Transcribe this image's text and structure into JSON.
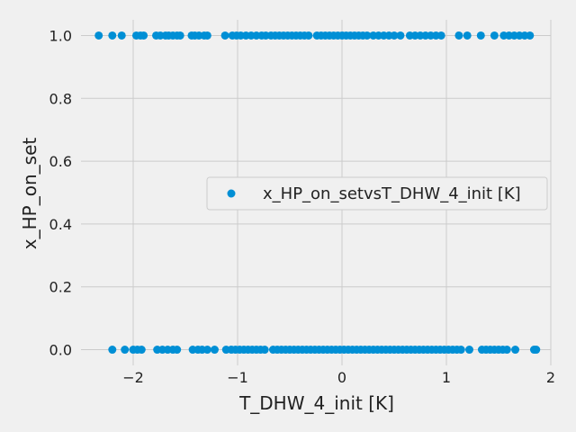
{
  "chart_data": {
    "type": "scatter",
    "title": "",
    "xlabel": "T_DHW_4_init [K]",
    "ylabel": "x_HP_on_set",
    "xlim": [
      -2.5,
      2.0
    ],
    "ylim": [
      -0.05,
      1.05
    ],
    "xticks": [
      -2,
      -1,
      0,
      1,
      2
    ],
    "xtick_labels": [
      "−2",
      "−1",
      "0",
      "1",
      "2"
    ],
    "yticks": [
      0.0,
      0.2,
      0.4,
      0.6,
      0.8,
      1.0
    ],
    "ytick_labels": [
      "0.0",
      "0.2",
      "0.4",
      "0.6",
      "0.8",
      "1.0"
    ],
    "grid": true,
    "legend_position": "center-right",
    "series": [
      {
        "name": "x_HP_on_setvsT_DHW_4_init [K]",
        "color": "#008fd5",
        "points": [
          {
            "x": -2.33,
            "y": 1
          },
          {
            "x": -2.2,
            "y": 1
          },
          {
            "x": -2.11,
            "y": 1
          },
          {
            "x": -1.97,
            "y": 1
          },
          {
            "x": -1.93,
            "y": 1
          },
          {
            "x": -1.9,
            "y": 1
          },
          {
            "x": -1.78,
            "y": 1
          },
          {
            "x": -1.74,
            "y": 1
          },
          {
            "x": -1.69,
            "y": 1
          },
          {
            "x": -1.66,
            "y": 1
          },
          {
            "x": -1.62,
            "y": 1
          },
          {
            "x": -1.58,
            "y": 1
          },
          {
            "x": -1.55,
            "y": 1
          },
          {
            "x": -1.44,
            "y": 1
          },
          {
            "x": -1.41,
            "y": 1
          },
          {
            "x": -1.37,
            "y": 1
          },
          {
            "x": -1.32,
            "y": 1
          },
          {
            "x": -1.29,
            "y": 1
          },
          {
            "x": -1.12,
            "y": 1
          },
          {
            "x": -1.05,
            "y": 1
          },
          {
            "x": -1.01,
            "y": 1
          },
          {
            "x": -0.97,
            "y": 1
          },
          {
            "x": -0.92,
            "y": 1
          },
          {
            "x": -0.87,
            "y": 1
          },
          {
            "x": -0.82,
            "y": 1
          },
          {
            "x": -0.77,
            "y": 1
          },
          {
            "x": -0.73,
            "y": 1
          },
          {
            "x": -0.68,
            "y": 1
          },
          {
            "x": -0.64,
            "y": 1
          },
          {
            "x": -0.6,
            "y": 1
          },
          {
            "x": -0.56,
            "y": 1
          },
          {
            "x": -0.52,
            "y": 1
          },
          {
            "x": -0.48,
            "y": 1
          },
          {
            "x": -0.44,
            "y": 1
          },
          {
            "x": -0.4,
            "y": 1
          },
          {
            "x": -0.36,
            "y": 1
          },
          {
            "x": -0.32,
            "y": 1
          },
          {
            "x": -0.24,
            "y": 1
          },
          {
            "x": -0.2,
            "y": 1
          },
          {
            "x": -0.16,
            "y": 1
          },
          {
            "x": -0.12,
            "y": 1
          },
          {
            "x": -0.08,
            "y": 1
          },
          {
            "x": -0.04,
            "y": 1
          },
          {
            "x": 0.0,
            "y": 1
          },
          {
            "x": 0.04,
            "y": 1
          },
          {
            "x": 0.08,
            "y": 1
          },
          {
            "x": 0.12,
            "y": 1
          },
          {
            "x": 0.16,
            "y": 1
          },
          {
            "x": 0.2,
            "y": 1
          },
          {
            "x": 0.24,
            "y": 1
          },
          {
            "x": 0.3,
            "y": 1
          },
          {
            "x": 0.35,
            "y": 1
          },
          {
            "x": 0.4,
            "y": 1
          },
          {
            "x": 0.45,
            "y": 1
          },
          {
            "x": 0.5,
            "y": 1
          },
          {
            "x": 0.56,
            "y": 1
          },
          {
            "x": 0.65,
            "y": 1
          },
          {
            "x": 0.7,
            "y": 1
          },
          {
            "x": 0.75,
            "y": 1
          },
          {
            "x": 0.8,
            "y": 1
          },
          {
            "x": 0.85,
            "y": 1
          },
          {
            "x": 0.9,
            "y": 1
          },
          {
            "x": 0.95,
            "y": 1
          },
          {
            "x": 1.12,
            "y": 1
          },
          {
            "x": 1.2,
            "y": 1
          },
          {
            "x": 1.33,
            "y": 1
          },
          {
            "x": 1.46,
            "y": 1
          },
          {
            "x": 1.55,
            "y": 1
          },
          {
            "x": 1.6,
            "y": 1
          },
          {
            "x": 1.65,
            "y": 1
          },
          {
            "x": 1.7,
            "y": 1
          },
          {
            "x": 1.75,
            "y": 1
          },
          {
            "x": 1.8,
            "y": 1
          },
          {
            "x": -2.2,
            "y": 0
          },
          {
            "x": -2.08,
            "y": 0
          },
          {
            "x": -2.0,
            "y": 0
          },
          {
            "x": -1.96,
            "y": 0
          },
          {
            "x": -1.92,
            "y": 0
          },
          {
            "x": -1.77,
            "y": 0
          },
          {
            "x": -1.72,
            "y": 0
          },
          {
            "x": -1.67,
            "y": 0
          },
          {
            "x": -1.62,
            "y": 0
          },
          {
            "x": -1.58,
            "y": 0
          },
          {
            "x": -1.43,
            "y": 0
          },
          {
            "x": -1.38,
            "y": 0
          },
          {
            "x": -1.34,
            "y": 0
          },
          {
            "x": -1.29,
            "y": 0
          },
          {
            "x": -1.22,
            "y": 0
          },
          {
            "x": -1.11,
            "y": 0
          },
          {
            "x": -1.06,
            "y": 0
          },
          {
            "x": -1.02,
            "y": 0
          },
          {
            "x": -0.98,
            "y": 0
          },
          {
            "x": -0.94,
            "y": 0
          },
          {
            "x": -0.9,
            "y": 0
          },
          {
            "x": -0.86,
            "y": 0
          },
          {
            "x": -0.82,
            "y": 0
          },
          {
            "x": -0.78,
            "y": 0
          },
          {
            "x": -0.74,
            "y": 0
          },
          {
            "x": -0.66,
            "y": 0
          },
          {
            "x": -0.62,
            "y": 0
          },
          {
            "x": -0.58,
            "y": 0
          },
          {
            "x": -0.54,
            "y": 0
          },
          {
            "x": -0.5,
            "y": 0
          },
          {
            "x": -0.46,
            "y": 0
          },
          {
            "x": -0.42,
            "y": 0
          },
          {
            "x": -0.38,
            "y": 0
          },
          {
            "x": -0.34,
            "y": 0
          },
          {
            "x": -0.3,
            "y": 0
          },
          {
            "x": -0.26,
            "y": 0
          },
          {
            "x": -0.22,
            "y": 0
          },
          {
            "x": -0.18,
            "y": 0
          },
          {
            "x": -0.14,
            "y": 0
          },
          {
            "x": -0.1,
            "y": 0
          },
          {
            "x": -0.06,
            "y": 0
          },
          {
            "x": -0.02,
            "y": 0
          },
          {
            "x": 0.02,
            "y": 0
          },
          {
            "x": 0.06,
            "y": 0
          },
          {
            "x": 0.1,
            "y": 0
          },
          {
            "x": 0.14,
            "y": 0
          },
          {
            "x": 0.18,
            "y": 0
          },
          {
            "x": 0.22,
            "y": 0
          },
          {
            "x": 0.26,
            "y": 0
          },
          {
            "x": 0.3,
            "y": 0
          },
          {
            "x": 0.34,
            "y": 0
          },
          {
            "x": 0.38,
            "y": 0
          },
          {
            "x": 0.42,
            "y": 0
          },
          {
            "x": 0.46,
            "y": 0
          },
          {
            "x": 0.5,
            "y": 0
          },
          {
            "x": 0.54,
            "y": 0
          },
          {
            "x": 0.58,
            "y": 0
          },
          {
            "x": 0.62,
            "y": 0
          },
          {
            "x": 0.66,
            "y": 0
          },
          {
            "x": 0.7,
            "y": 0
          },
          {
            "x": 0.74,
            "y": 0
          },
          {
            "x": 0.78,
            "y": 0
          },
          {
            "x": 0.82,
            "y": 0
          },
          {
            "x": 0.86,
            "y": 0
          },
          {
            "x": 0.9,
            "y": 0
          },
          {
            "x": 0.94,
            "y": 0
          },
          {
            "x": 0.98,
            "y": 0
          },
          {
            "x": 1.02,
            "y": 0
          },
          {
            "x": 1.06,
            "y": 0
          },
          {
            "x": 1.1,
            "y": 0
          },
          {
            "x": 1.14,
            "y": 0
          },
          {
            "x": 1.22,
            "y": 0
          },
          {
            "x": 1.34,
            "y": 0
          },
          {
            "x": 1.38,
            "y": 0
          },
          {
            "x": 1.42,
            "y": 0
          },
          {
            "x": 1.46,
            "y": 0
          },
          {
            "x": 1.5,
            "y": 0
          },
          {
            "x": 1.54,
            "y": 0
          },
          {
            "x": 1.58,
            "y": 0
          },
          {
            "x": 1.66,
            "y": 0
          },
          {
            "x": 1.84,
            "y": 0
          },
          {
            "x": 1.86,
            "y": 0
          }
        ]
      }
    ]
  }
}
